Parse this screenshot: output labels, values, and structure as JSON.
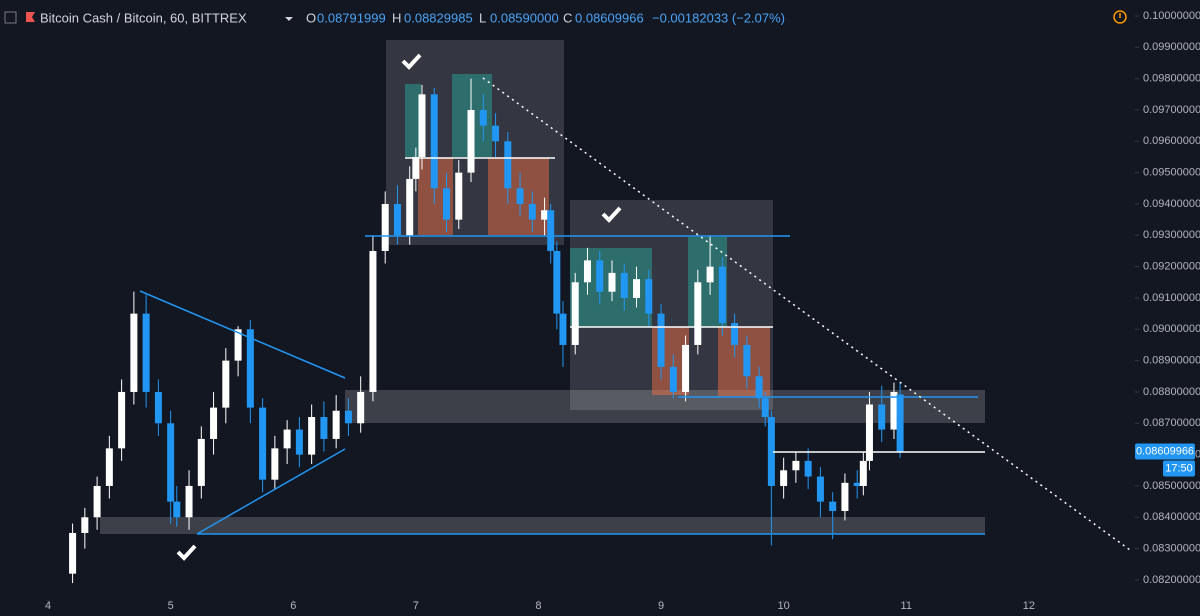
{
  "chart_data": {
    "type": "candlestick",
    "title": "Bitcoin Cash / Bitcoin, 60, BITTREX",
    "ohlc": [
      {
        "label": "O",
        "value": "0.08791999"
      },
      {
        "label": "H",
        "value": "0.08829985"
      },
      {
        "label": "L",
        "value": "0.08590000"
      },
      {
        "label": "C",
        "value": "0.08609966"
      }
    ],
    "change": "−0.00182033 (−2.07%)",
    "last_price": "0.08609966",
    "countdown": "17:50",
    "up_color": "#ffffff",
    "down_color": "#2196f3",
    "x": [
      4.2,
      4.3,
      4.4,
      4.5,
      4.6,
      4.7,
      4.8,
      4.9,
      5.0,
      5.05,
      5.15,
      5.25,
      5.35,
      5.45,
      5.55,
      5.65,
      5.75,
      5.85,
      5.95,
      6.05,
      6.15,
      6.25,
      6.35,
      6.45,
      6.55,
      6.65,
      6.75,
      6.85,
      6.95,
      7.0,
      7.05,
      7.15,
      7.25,
      7.35,
      7.45,
      7.55,
      7.65,
      7.75,
      7.85,
      7.95,
      8.05,
      8.1,
      8.15,
      8.2,
      8.3,
      8.4,
      8.5,
      8.6,
      8.7,
      8.8,
      8.9,
      9.0,
      9.1,
      9.2,
      9.3,
      9.4,
      9.5,
      9.6,
      9.7,
      9.8,
      9.85,
      9.9,
      10.0,
      10.1,
      10.2,
      10.3,
      10.4,
      10.5,
      10.6,
      10.65,
      10.7,
      10.8,
      10.9,
      10.95
    ],
    "open": [
      0.0822,
      0.0835,
      0.084,
      0.085,
      0.0862,
      0.088,
      0.0905,
      0.088,
      0.087,
      0.0845,
      0.084,
      0.085,
      0.0865,
      0.0875,
      0.089,
      0.09,
      0.0875,
      0.0852,
      0.0862,
      0.0868,
      0.086,
      0.0872,
      0.0865,
      0.0874,
      0.087,
      0.088,
      0.0925,
      0.094,
      0.093,
      0.0948,
      0.0955,
      0.0975,
      0.0945,
      0.0935,
      0.095,
      0.097,
      0.0965,
      0.096,
      0.0945,
      0.094,
      0.0935,
      0.0938,
      0.0925,
      0.0905,
      0.0895,
      0.0915,
      0.0922,
      0.0912,
      0.0918,
      0.091,
      0.0916,
      0.0905,
      0.0888,
      0.088,
      0.0895,
      0.0915,
      0.092,
      0.0902,
      0.0895,
      0.0885,
      0.0878,
      0.0872,
      0.085,
      0.0855,
      0.0858,
      0.0853,
      0.0845,
      0.0842,
      0.0851,
      0.085,
      0.0858,
      0.0876,
      0.0868,
      0.08791999
    ],
    "high": [
      0.0838,
      0.0843,
      0.0853,
      0.0866,
      0.0884,
      0.0912,
      0.0911,
      0.0884,
      0.0874,
      0.085,
      0.0855,
      0.0869,
      0.088,
      0.0894,
      0.0901,
      0.0903,
      0.0878,
      0.0866,
      0.0871,
      0.0872,
      0.0876,
      0.0877,
      0.0879,
      0.0878,
      0.0885,
      0.093,
      0.0944,
      0.0946,
      0.0952,
      0.0958,
      0.0978,
      0.0977,
      0.095,
      0.0954,
      0.098,
      0.0975,
      0.0969,
      0.0963,
      0.095,
      0.0944,
      0.0942,
      0.094,
      0.0928,
      0.0909,
      0.0918,
      0.0926,
      0.0925,
      0.0922,
      0.0921,
      0.092,
      0.0919,
      0.0908,
      0.0892,
      0.0898,
      0.0919,
      0.093,
      0.0923,
      0.0905,
      0.0898,
      0.0888,
      0.088,
      0.0874,
      0.0859,
      0.0861,
      0.0862,
      0.0856,
      0.0848,
      0.0854,
      0.0855,
      0.0861,
      0.088,
      0.0882,
      0.0883,
      0.08829985
    ],
    "low": [
      0.0819,
      0.083,
      0.0836,
      0.0846,
      0.0858,
      0.0876,
      0.0875,
      0.0866,
      0.0838,
      0.0837,
      0.0836,
      0.0846,
      0.086,
      0.087,
      0.0885,
      0.087,
      0.0848,
      0.0849,
      0.0857,
      0.0856,
      0.0857,
      0.0861,
      0.0862,
      0.0866,
      0.0867,
      0.0877,
      0.0921,
      0.0927,
      0.0927,
      0.0944,
      0.0951,
      0.094,
      0.0931,
      0.0932,
      0.0947,
      0.096,
      0.0955,
      0.094,
      0.0936,
      0.0931,
      0.093,
      0.0921,
      0.09,
      0.0888,
      0.0892,
      0.0911,
      0.0908,
      0.0909,
      0.0906,
      0.0907,
      0.0901,
      0.0884,
      0.0878,
      0.0877,
      0.0892,
      0.0911,
      0.0898,
      0.0891,
      0.0881,
      0.0875,
      0.0869,
      0.0831,
      0.0846,
      0.0851,
      0.0849,
      0.084,
      0.0833,
      0.0839,
      0.0846,
      0.0847,
      0.0855,
      0.0864,
      0.0865,
      0.0859
    ],
    "close": [
      0.0835,
      0.084,
      0.085,
      0.0862,
      0.088,
      0.0905,
      0.088,
      0.087,
      0.0845,
      0.084,
      0.085,
      0.0865,
      0.0875,
      0.089,
      0.09,
      0.0875,
      0.0852,
      0.0862,
      0.0868,
      0.086,
      0.0872,
      0.0865,
      0.0874,
      0.087,
      0.088,
      0.0925,
      0.094,
      0.093,
      0.0948,
      0.0955,
      0.0975,
      0.0945,
      0.0935,
      0.095,
      0.097,
      0.0965,
      0.096,
      0.0945,
      0.094,
      0.0935,
      0.0938,
      0.0925,
      0.0905,
      0.0895,
      0.0915,
      0.0922,
      0.0912,
      0.0918,
      0.091,
      0.0916,
      0.0905,
      0.0888,
      0.088,
      0.0895,
      0.0915,
      0.092,
      0.0902,
      0.0895,
      0.0885,
      0.0878,
      0.0872,
      0.085,
      0.0855,
      0.0858,
      0.0853,
      0.0845,
      0.0842,
      0.0851,
      0.085,
      0.0858,
      0.0876,
      0.0868,
      0.088,
      0.08609966
    ],
    "xlim": [
      3.608,
      12.866
    ],
    "xticks": [
      4,
      5,
      6,
      7,
      8,
      9,
      10,
      11,
      12
    ],
    "ylim": [
      0.08136,
      0.10051
    ],
    "yticks": [
      {
        "value": 0.082,
        "label": "0.08200000"
      },
      {
        "value": 0.083,
        "label": "0.08300000"
      },
      {
        "value": 0.084,
        "label": "0.08400000"
      },
      {
        "value": 0.085,
        "label": "0.08500000"
      },
      {
        "value": 0.086,
        "label": "0.08600000"
      },
      {
        "value": 0.087,
        "label": "0.08700000"
      },
      {
        "value": 0.088,
        "label": "0.08800000"
      },
      {
        "value": 0.089,
        "label": "0.08900000"
      },
      {
        "value": 0.09,
        "label": "0.09000000"
      },
      {
        "value": 0.091,
        "label": "0.09100000"
      },
      {
        "value": 0.092,
        "label": "0.09200000"
      },
      {
        "value": 0.093,
        "label": "0.09300000"
      },
      {
        "value": 0.094,
        "label": "0.09400000"
      },
      {
        "value": 0.095,
        "label": "0.09500000"
      },
      {
        "value": 0.096,
        "label": "0.09600000"
      },
      {
        "value": 0.097,
        "label": "0.09700000"
      },
      {
        "value": 0.098,
        "label": "0.09800000"
      },
      {
        "value": 0.099,
        "label": "0.09900000"
      },
      {
        "value": 0.1,
        "label": "0.10000000"
      }
    ]
  }
}
